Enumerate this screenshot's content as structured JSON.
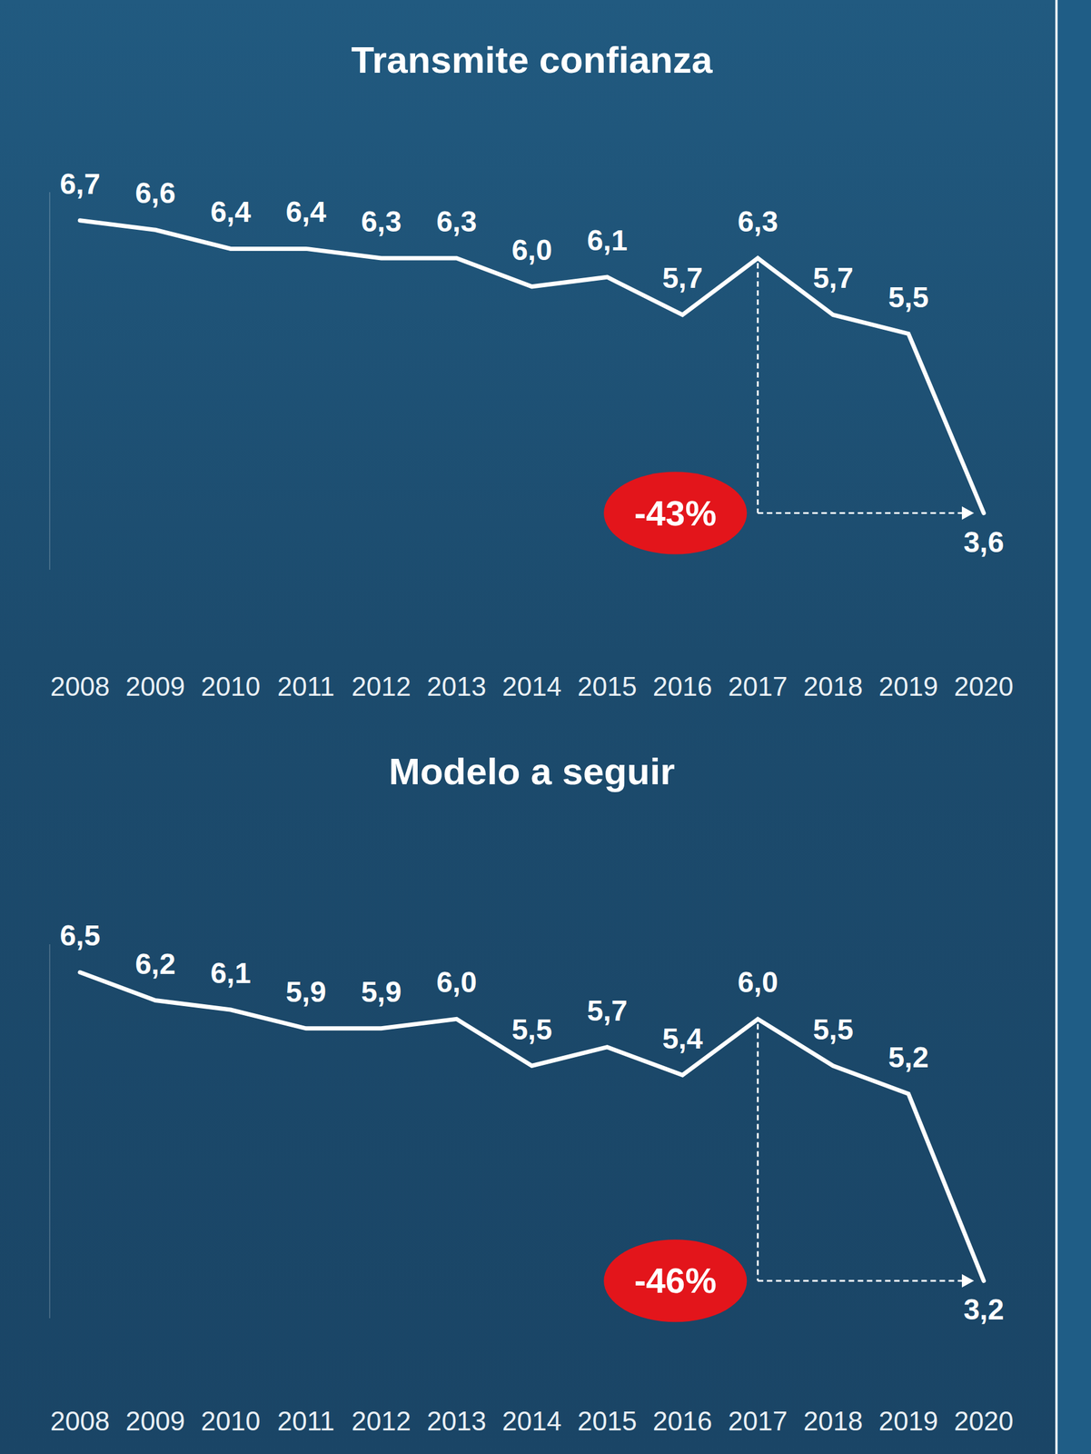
{
  "chart_data": [
    {
      "type": "line",
      "title": "Transmite confianza",
      "categories": [
        "2008",
        "2009",
        "2010",
        "2011",
        "2012",
        "2013",
        "2014",
        "2015",
        "2016",
        "2017",
        "2018",
        "2019",
        "2020"
      ],
      "values": [
        6.7,
        6.6,
        6.4,
        6.4,
        6.3,
        6.3,
        6.0,
        6.1,
        5.7,
        6.3,
        5.7,
        5.5,
        3.6
      ],
      "value_labels": [
        "6,7",
        "6,6",
        "6,4",
        "6,4",
        "6,3",
        "6,3",
        "6,0",
        "6,1",
        "5,7",
        "6,3",
        "5,7",
        "5,5",
        "3,6"
      ],
      "color": "#ffffff",
      "ylim": [
        3,
        7
      ],
      "yticks": [],
      "grid": false,
      "data_labels": true,
      "tick_labels": "x",
      "annotations": [
        {
          "text": "-43%",
          "from": "2017",
          "to": "2020"
        }
      ]
    },
    {
      "type": "line",
      "title": "Modelo a seguir",
      "categories": [
        "2008",
        "2009",
        "2010",
        "2011",
        "2012",
        "2013",
        "2014",
        "2015",
        "2016",
        "2017",
        "2018",
        "2019",
        "2020"
      ],
      "values": [
        6.5,
        6.2,
        6.1,
        5.9,
        5.9,
        6.0,
        5.5,
        5.7,
        5.4,
        6.0,
        5.5,
        5.2,
        3.2
      ],
      "value_labels": [
        "6,5",
        "6,2",
        "6,1",
        "5,9",
        "5,9",
        "6,0",
        "5,5",
        "5,7",
        "5,4",
        "6,0",
        "5,5",
        "5,2",
        "3,2"
      ],
      "color": "#ffffff",
      "ylim": [
        2.8,
        6.8
      ],
      "yticks": [],
      "grid": false,
      "data_labels": true,
      "tick_labels": "x",
      "annotations": [
        {
          "text": "-46%",
          "from": "2017",
          "to": "2020"
        }
      ]
    }
  ]
}
